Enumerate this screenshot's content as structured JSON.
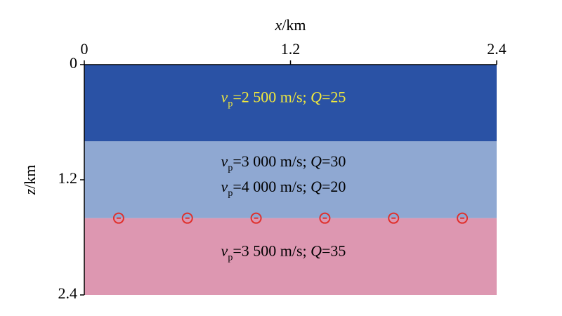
{
  "chart_data": {
    "type": "layered-model",
    "xlabel": {
      "var": "x",
      "unit": "/km"
    },
    "ylabel": {
      "var": "z",
      "unit": "/km"
    },
    "xlim": [
      0,
      2.4
    ],
    "ylim": [
      0,
      2.4
    ],
    "xticks": [
      0,
      1.2,
      2.4
    ],
    "yticks": [
      0,
      1.2,
      2.4
    ],
    "layers": [
      {
        "top": 0,
        "bottom": 0.8,
        "color": "#2a52a5",
        "text_color": "#f2ea3c",
        "labels": [
          [
            "v",
            "p",
            "=2 500 m/s; ",
            "Q",
            "=25"
          ]
        ]
      },
      {
        "top": 0.8,
        "bottom": 1.6,
        "color": "#8fa8d2",
        "text_color": "#000000",
        "labels": [
          [
            "v",
            "p",
            "=3 000 m/s; ",
            "Q",
            "=30"
          ],
          [
            "v",
            "p",
            "=4 000 m/s; ",
            "Q",
            "=20"
          ]
        ]
      },
      {
        "top": 1.6,
        "bottom": 2.4,
        "color": "#dd97b1",
        "text_color": "#000000",
        "labels": [
          [
            "v",
            "p",
            "=3 500 m/s; ",
            "Q",
            "=35"
          ]
        ]
      }
    ],
    "receivers": {
      "x": [
        0.2,
        0.6,
        1.0,
        1.4,
        1.8,
        2.2
      ],
      "z": 1.6,
      "color": "#e0302c"
    }
  }
}
